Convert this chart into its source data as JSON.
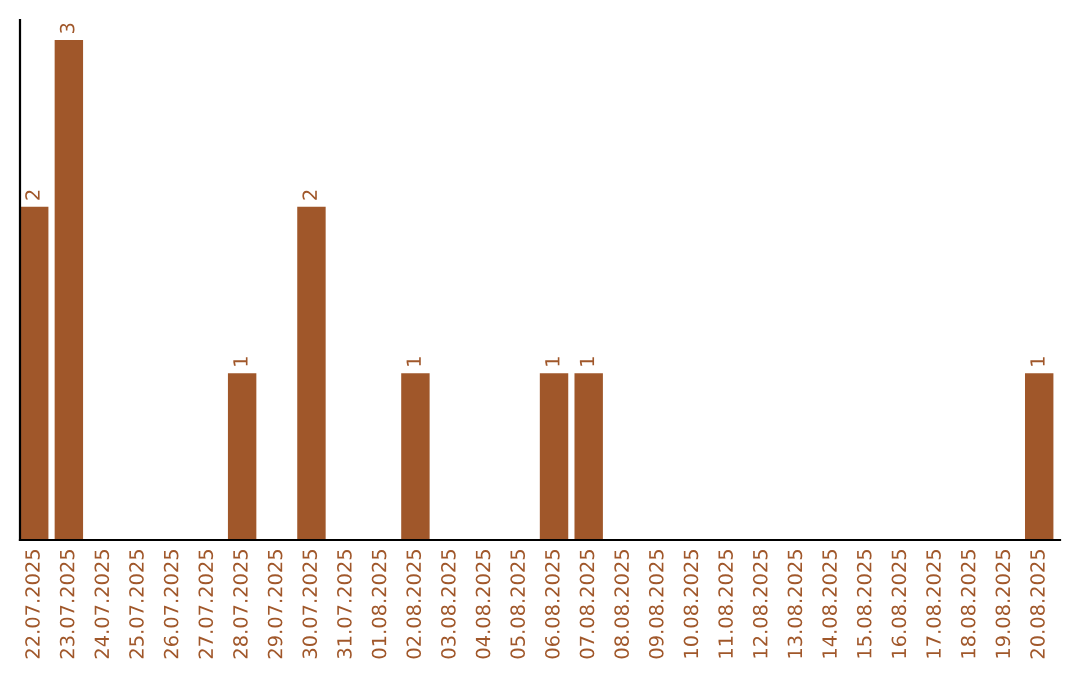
{
  "chart_data": {
    "type": "bar",
    "categories": [
      "22.07.2025",
      "23.07.2025",
      "24.07.2025",
      "25.07.2025",
      "26.07.2025",
      "27.07.2025",
      "28.07.2025",
      "29.07.2025",
      "30.07.2025",
      "31.07.2025",
      "01.08.2025",
      "02.08.2025",
      "03.08.2025",
      "04.08.2025",
      "05.08.2025",
      "06.08.2025",
      "07.08.2025",
      "08.08.2025",
      "09.08.2025",
      "10.08.2025",
      "11.08.2025",
      "12.08.2025",
      "13.08.2025",
      "14.08.2025",
      "15.08.2025",
      "16.08.2025",
      "17.08.2025",
      "18.08.2025",
      "19.08.2025",
      "20.08.2025"
    ],
    "series": [
      {
        "color": "#a0572a",
        "values": [
          2,
          3,
          0,
          0,
          0,
          0,
          1,
          0,
          2,
          0,
          0,
          1,
          0,
          0,
          0,
          1,
          1,
          0,
          0,
          0,
          0,
          0,
          0,
          0,
          0,
          0,
          0,
          0,
          0,
          1
        ],
        "value_labels": [
          "2",
          "3",
          null,
          null,
          null,
          null,
          "1",
          null,
          "2",
          null,
          null,
          "1",
          null,
          null,
          null,
          "1",
          "1",
          null,
          null,
          null,
          null,
          null,
          null,
          null,
          null,
          null,
          null,
          null,
          null,
          "1"
        ]
      }
    ],
    "grid": false,
    "legend": false,
    "tick_labels": "x"
  }
}
